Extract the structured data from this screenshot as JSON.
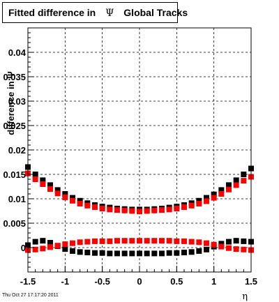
{
  "title": {
    "prefix": "Fitted difference in",
    "symbol": "Ψ",
    "suffix": "Global Tracks"
  },
  "footer": "Thu Oct 27 17:17:20 2011",
  "chart_data": {
    "type": "scatter",
    "xlabel": "η",
    "ylabel": "difference in Ψ",
    "xlim": [
      -1.5,
      1.5
    ],
    "ylim": [
      -0.005,
      0.045
    ],
    "grid": true,
    "x_ticks": [
      -1.5,
      -1,
      -0.5,
      0,
      0.5,
      1,
      1.5
    ],
    "x_tick_labels": [
      "-1.5",
      "-1",
      "-0.5",
      "0",
      "0.5",
      "1",
      "1.5"
    ],
    "y_ticks": [
      0,
      0.005,
      0.01,
      0.015,
      0.02,
      0.025,
      0.03,
      0.035,
      0.04
    ],
    "y_tick_labels": [
      "0",
      "0.005",
      "0.01",
      "0.015",
      "0.02",
      "0.025",
      "0.03",
      "0.035",
      "0.04"
    ],
    "series": [
      {
        "color": "#000000",
        "marker": "square",
        "x": [
          -1.5,
          -1.4,
          -1.3,
          -1.2,
          -1.1,
          -1.0,
          -0.9,
          -0.8,
          -0.7,
          -0.6,
          -0.5,
          -0.4,
          -0.3,
          -0.2,
          -0.1,
          0.0,
          0.1,
          0.2,
          0.3,
          0.4,
          0.5,
          0.6,
          0.7,
          0.8,
          0.9,
          1.0,
          1.1,
          1.2,
          1.3,
          1.4,
          1.5
        ],
        "y": [
          0.0165,
          0.015,
          0.0138,
          0.0128,
          0.0118,
          0.011,
          0.0102,
          0.0096,
          0.0091,
          0.0087,
          0.0084,
          0.0082,
          0.008,
          0.0079,
          0.0078,
          0.0078,
          0.0078,
          0.0079,
          0.008,
          0.0082,
          0.0084,
          0.0087,
          0.0091,
          0.0096,
          0.0102,
          0.0109,
          0.0118,
          0.0128,
          0.0138,
          0.015,
          0.0162
        ]
      },
      {
        "color": "#ff0000",
        "marker": "square",
        "x": [
          -1.5,
          -1.4,
          -1.3,
          -1.2,
          -1.1,
          -1.0,
          -0.9,
          -0.8,
          -0.7,
          -0.6,
          -0.5,
          -0.4,
          -0.3,
          -0.2,
          -0.1,
          0.0,
          0.1,
          0.2,
          0.3,
          0.4,
          0.5,
          0.6,
          0.7,
          0.8,
          0.9,
          1.0,
          1.1,
          1.2,
          1.3,
          1.4,
          1.5
        ],
        "y": [
          0.0152,
          0.014,
          0.013,
          0.012,
          0.0111,
          0.0103,
          0.0096,
          0.009,
          0.0086,
          0.0083,
          0.008,
          0.0078,
          0.0077,
          0.0076,
          0.0075,
          0.0074,
          0.0075,
          0.0076,
          0.0077,
          0.0078,
          0.008,
          0.0083,
          0.0086,
          0.009,
          0.0095,
          0.0102,
          0.011,
          0.0119,
          0.0128,
          0.0137,
          0.0145
        ]
      },
      {
        "color": "#000000",
        "marker": "square",
        "x": [
          -1.5,
          -1.4,
          -1.3,
          -1.2,
          -1.1,
          -1.0,
          -0.9,
          -0.8,
          -0.7,
          -0.6,
          -0.5,
          -0.4,
          -0.3,
          -0.2,
          -0.1,
          0.0,
          0.1,
          0.2,
          0.3,
          0.4,
          0.5,
          0.6,
          0.7,
          0.8,
          0.9,
          1.0,
          1.1,
          1.2,
          1.3,
          1.4,
          1.5
        ],
        "y": [
          0.0005,
          0.0012,
          0.0014,
          0.001,
          0.0003,
          -0.0003,
          -0.0007,
          -0.0009,
          -0.001,
          -0.0011,
          -0.0011,
          -0.0012,
          -0.0012,
          -0.0012,
          -0.0012,
          -0.0012,
          -0.0012,
          -0.0012,
          -0.0012,
          -0.0011,
          -0.0011,
          -0.001,
          -0.0009,
          -0.0007,
          -0.0004,
          0.0002,
          0.0008,
          0.0012,
          0.0014,
          0.0013,
          0.0012
        ]
      },
      {
        "color": "#ff0000",
        "marker": "square",
        "x": [
          -1.5,
          -1.4,
          -1.3,
          -1.2,
          -1.1,
          -1.0,
          -0.9,
          -0.8,
          -0.7,
          -0.6,
          -0.5,
          -0.4,
          -0.3,
          -0.2,
          -0.1,
          0.0,
          0.1,
          0.2,
          0.3,
          0.4,
          0.5,
          0.6,
          0.7,
          0.8,
          0.9,
          1.0,
          1.1,
          1.2,
          1.3,
          1.4,
          1.5
        ],
        "y": [
          -0.0005,
          -0.0004,
          -0.0002,
          0.0001,
          0.0004,
          0.0007,
          0.0009,
          0.0011,
          0.0012,
          0.0013,
          0.0013,
          0.0013,
          0.0014,
          0.0014,
          0.0014,
          0.0014,
          0.0014,
          0.0014,
          0.0014,
          0.0014,
          0.0013,
          0.0013,
          0.0012,
          0.0011,
          0.0009,
          0.0006,
          0.0002,
          -0.0001,
          -0.0003,
          -0.0004,
          -0.0005
        ]
      }
    ]
  }
}
